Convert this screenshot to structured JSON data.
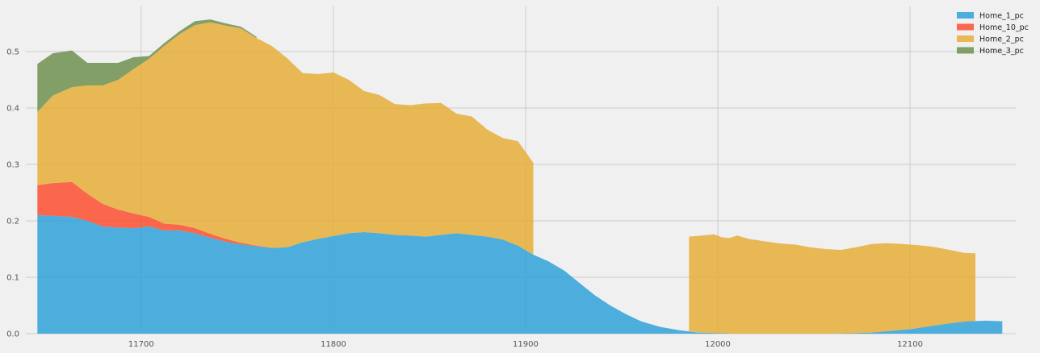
{
  "chart_data": {
    "type": "area",
    "stacked": true,
    "title": "",
    "xlabel": "",
    "ylabel": "",
    "xlim": [
      11640,
      12155
    ],
    "ylim": [
      0,
      0.58
    ],
    "xticks": [
      11700,
      11800,
      11900,
      12000,
      12100
    ],
    "yticks": [
      0.0,
      0.1,
      0.2,
      0.3,
      0.4,
      0.5
    ],
    "grid": true,
    "legend_position": "top-right",
    "series": [
      {
        "name": "Home_1_pc",
        "color": "#30a2da",
        "x": [
          11646,
          11654,
          11664,
          11672,
          11680,
          11688,
          11696,
          11704,
          11712,
          11720,
          11728,
          11736,
          11744,
          11752,
          11760,
          11768,
          11776,
          11784,
          11792,
          11800,
          11808,
          11816,
          11824,
          11832,
          11840,
          11848,
          11856,
          11864,
          11872,
          11880,
          11888,
          11896,
          11904,
          11912,
          11920,
          11928,
          11936,
          11944,
          11952,
          11960,
          11970,
          11980,
          11985,
          11990,
          12000,
          12010,
          12020,
          12040,
          12060,
          12080,
          12090,
          12100,
          12110,
          12120,
          12130,
          12140,
          12148
        ],
        "values": [
          0.21,
          0.209,
          0.207,
          0.2,
          0.19,
          0.188,
          0.187,
          0.19,
          0.183,
          0.183,
          0.178,
          0.17,
          0.163,
          0.158,
          0.155,
          0.152,
          0.153,
          0.162,
          0.168,
          0.173,
          0.178,
          0.18,
          0.178,
          0.175,
          0.174,
          0.172,
          0.175,
          0.178,
          0.175,
          0.172,
          0.167,
          0.156,
          0.14,
          0.128,
          0.112,
          0.09,
          0.068,
          0.05,
          0.035,
          0.022,
          0.012,
          0.006,
          0.004,
          0.002,
          0.001,
          0.0,
          0.0,
          0.0,
          0.0,
          0.002,
          0.005,
          0.008,
          0.013,
          0.018,
          0.022,
          0.023,
          0.022
        ]
      },
      {
        "name": "Home_10_pc",
        "color": "#fc4f30",
        "x": [
          11646,
          11654,
          11664,
          11672,
          11680,
          11688,
          11696,
          11704,
          11712,
          11720,
          11728,
          11736,
          11744,
          11752,
          11760,
          11768,
          11776,
          11784,
          11792,
          11800,
          11808,
          11816,
          11824,
          11832,
          11840,
          11848,
          11856,
          11864,
          11872,
          11880,
          11888,
          11896,
          11904
        ],
        "values": [
          0.053,
          0.058,
          0.062,
          0.048,
          0.04,
          0.032,
          0.026,
          0.017,
          0.012,
          0.01,
          0.009,
          0.007,
          0.005,
          0.003,
          0.001,
          0.0,
          0.0,
          0.0,
          0.0,
          0.0,
          0.0,
          0.0,
          0.0,
          0.0,
          0.0,
          0.0,
          0.0,
          0.0,
          0.0,
          0.0,
          0.0,
          0.0,
          0.0
        ]
      },
      {
        "name": "Home_2_pc",
        "color": "#e5ae38",
        "segments": [
          {
            "x": [
              11646,
              11654,
              11664,
              11672,
              11680,
              11688,
              11696,
              11704,
              11712,
              11720,
              11728,
              11736,
              11744,
              11752,
              11760,
              11768,
              11776,
              11784,
              11792,
              11800,
              11808,
              11816,
              11824,
              11832,
              11840,
              11848,
              11856,
              11864,
              11872,
              11880,
              11888,
              11896,
              11904
            ],
            "values": [
              0.13,
              0.155,
              0.168,
              0.192,
              0.21,
              0.23,
              0.256,
              0.28,
              0.315,
              0.338,
              0.36,
              0.375,
              0.378,
              0.38,
              0.368,
              0.358,
              0.335,
              0.3,
              0.292,
              0.29,
              0.272,
              0.25,
              0.245,
              0.232,
              0.231,
              0.236,
              0.234,
              0.212,
              0.21,
              0.19,
              0.18,
              0.185,
              0.163
            ]
          },
          {
            "x": [
              11985,
              11992,
              11998,
              12002,
              12006,
              12010,
              12016,
              12024,
              12032,
              12040,
              12048,
              12056,
              12064,
              12072,
              12080,
              12088,
              12096,
              12104,
              12112,
              12120,
              12128,
              12134
            ],
            "values": [
              0.168,
              0.172,
              0.175,
              0.17,
              0.169,
              0.174,
              0.168,
              0.164,
              0.16,
              0.158,
              0.153,
              0.15,
              0.148,
              0.152,
              0.157,
              0.156,
              0.152,
              0.147,
              0.14,
              0.131,
              0.122,
              0.12
            ]
          }
        ]
      },
      {
        "name": "Home_3_pc",
        "color": "#6d904f",
        "x": [
          11646,
          11654,
          11664,
          11672,
          11680,
          11688,
          11696,
          11704,
          11712,
          11720,
          11728,
          11736,
          11744,
          11752,
          11760
        ],
        "values": [
          0.085,
          0.075,
          0.065,
          0.04,
          0.04,
          0.03,
          0.021,
          0.005,
          0.005,
          0.005,
          0.007,
          0.005,
          0.004,
          0.003,
          0.002
        ]
      }
    ]
  }
}
